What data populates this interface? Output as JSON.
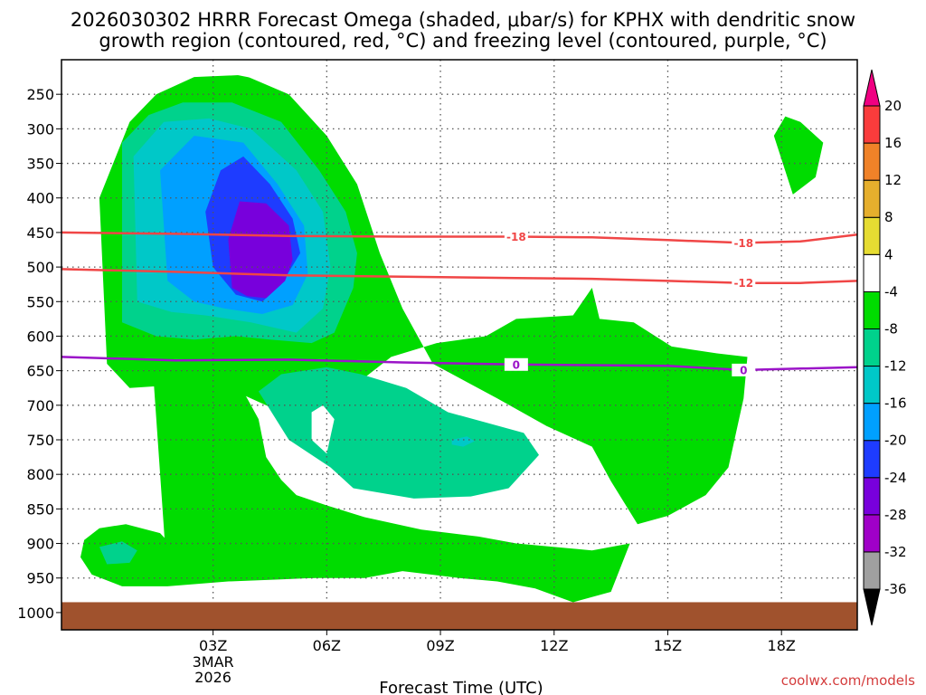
{
  "chart_data": {
    "type": "contour",
    "title_line1": "2026030302 HRRR Forecast Omega (shaded, μbar/s) for KPHX with dendritic snow",
    "title_line2": "growth region (contoured, red, °C) and freezing level (contoured, purple, °C)",
    "xlabel": "Forecast Time (UTC)",
    "credit": "coolwx.com/models",
    "x_range_hours": [
      -1,
      20
    ],
    "x_ticks": [
      {
        "hour": 3,
        "label": "03Z",
        "sub": [
          "3MAR",
          "2026"
        ]
      },
      {
        "hour": 6,
        "label": "06Z",
        "sub": []
      },
      {
        "hour": 9,
        "label": "09Z",
        "sub": []
      },
      {
        "hour": 12,
        "label": "12Z",
        "sub": []
      },
      {
        "hour": 15,
        "label": "15Z",
        "sub": []
      },
      {
        "hour": 18,
        "label": "18Z",
        "sub": []
      }
    ],
    "y_range_mb": [
      200,
      1025
    ],
    "y_ticks": [
      250,
      300,
      350,
      400,
      450,
      500,
      550,
      600,
      650,
      700,
      750,
      800,
      850,
      900,
      950,
      1000
    ],
    "surface_pressure_mb": 985,
    "colorbar": {
      "levels": [
        -36,
        -32,
        -28,
        -24,
        -20,
        -16,
        -12,
        -8,
        -4,
        4,
        8,
        12,
        16,
        20
      ],
      "colors": [
        "#000000",
        "#a0a0a0",
        "#a000c8",
        "#7800dc",
        "#1e3cff",
        "#00a0ff",
        "#00c8c8",
        "#00d28c",
        "#00dc00",
        "#ffffff",
        "#e6dc32",
        "#e6af2d",
        "#f08228",
        "#fa3c3c",
        "#f00082"
      ]
    },
    "dgz_contours": [
      {
        "value": -18,
        "label": "-18",
        "points": [
          [
            -1,
            450
          ],
          [
            2,
            452
          ],
          [
            5,
            455
          ],
          [
            8,
            456
          ],
          [
            11,
            456
          ],
          [
            13,
            457
          ],
          [
            15,
            461
          ],
          [
            17,
            465
          ],
          [
            18.5,
            463
          ],
          [
            20,
            453
          ]
        ],
        "label_hours": [
          11,
          17
        ]
      },
      {
        "value": -12,
        "label": "-12",
        "points": [
          [
            -1,
            503
          ],
          [
            2,
            507
          ],
          [
            5,
            512
          ],
          [
            8,
            514
          ],
          [
            11,
            516
          ],
          [
            13,
            517
          ],
          [
            15,
            520
          ],
          [
            17,
            523
          ],
          [
            18.5,
            523
          ],
          [
            20,
            520
          ]
        ],
        "label_hours": [
          17
        ]
      }
    ],
    "freezing_contours": [
      {
        "value": 0,
        "label": "0",
        "points": [
          [
            -1,
            630
          ],
          [
            2,
            635
          ],
          [
            5,
            634
          ],
          [
            8,
            638
          ],
          [
            11,
            641
          ],
          [
            13,
            642
          ],
          [
            15,
            643
          ],
          [
            17,
            649
          ],
          [
            18.5,
            647
          ],
          [
            20,
            645
          ]
        ],
        "label_hours": [
          11,
          17
        ]
      }
    ],
    "omega_regions": [
      {
        "value": -4,
        "points": [
          [
            0.2,
            640
          ],
          [
            0,
            400
          ],
          [
            0.8,
            290
          ],
          [
            1.5,
            250
          ],
          [
            2.5,
            225
          ],
          [
            3.8,
            222
          ],
          [
            5,
            250
          ],
          [
            6,
            310
          ],
          [
            6.8,
            380
          ],
          [
            7.4,
            480
          ],
          [
            8,
            560
          ],
          [
            8.8,
            640
          ],
          [
            10.5,
            690
          ],
          [
            11.8,
            730
          ],
          [
            13,
            760
          ],
          [
            13.5,
            810
          ],
          [
            14.2,
            872
          ],
          [
            15,
            860
          ],
          [
            16,
            830
          ],
          [
            16.6,
            790
          ],
          [
            17,
            690
          ],
          [
            17.1,
            630
          ],
          [
            16.3,
            625
          ],
          [
            15.1,
            615
          ],
          [
            14.1,
            580
          ],
          [
            13.2,
            575
          ],
          [
            13,
            530
          ],
          [
            12.5,
            570
          ],
          [
            11,
            575
          ],
          [
            10.2,
            600
          ],
          [
            8.9,
            610
          ],
          [
            7.7,
            630
          ],
          [
            7,
            660
          ],
          [
            6.6,
            680
          ],
          [
            5.7,
            700
          ],
          [
            5,
            715
          ],
          [
            4,
            690
          ],
          [
            3,
            665
          ],
          [
            2.2,
            670
          ],
          [
            0.8,
            675
          ]
        ]
      },
      {
        "value": -4,
        "points": [
          [
            1.4,
            640
          ],
          [
            2,
            640
          ],
          [
            3.2,
            660
          ],
          [
            3.8,
            680
          ],
          [
            4.2,
            720
          ],
          [
            4.4,
            775
          ],
          [
            4.8,
            808
          ],
          [
            5.2,
            830
          ],
          [
            6,
            845
          ],
          [
            7,
            862
          ],
          [
            8.5,
            880
          ],
          [
            10,
            890
          ],
          [
            11,
            900
          ],
          [
            12,
            905
          ],
          [
            13,
            910
          ],
          [
            14,
            900
          ],
          [
            13.5,
            970
          ],
          [
            12.5,
            985
          ],
          [
            11.5,
            965
          ],
          [
            10.5,
            955
          ],
          [
            9.5,
            950
          ],
          [
            8,
            940
          ],
          [
            7,
            950
          ],
          [
            5.5,
            950
          ],
          [
            4.5,
            940
          ],
          [
            3,
            950
          ],
          [
            1.8,
            955
          ]
        ]
      },
      {
        "value": -4,
        "points": [
          [
            18.3,
            395
          ],
          [
            17.8,
            310
          ],
          [
            18.1,
            282
          ],
          [
            18.5,
            290
          ],
          [
            19.1,
            320
          ],
          [
            18.9,
            370
          ]
        ]
      },
      {
        "value": -4,
        "points": [
          [
            -0.4,
            895
          ],
          [
            0,
            878
          ],
          [
            0.7,
            872
          ],
          [
            1.6,
            885
          ],
          [
            2.2,
            920
          ],
          [
            2.8,
            890
          ],
          [
            3.4,
            860
          ],
          [
            4.2,
            840
          ],
          [
            5,
            845
          ],
          [
            6,
            880
          ],
          [
            6.8,
            900
          ],
          [
            7.4,
            918
          ],
          [
            7.5,
            942
          ],
          [
            6.4,
            948
          ],
          [
            4.8,
            952
          ],
          [
            3.4,
            955
          ],
          [
            1.8,
            962
          ],
          [
            0.6,
            962
          ],
          [
            -0.2,
            945
          ],
          [
            -0.5,
            920
          ]
        ]
      },
      {
        "value": -8,
        "points": [
          [
            0.6,
            580
          ],
          [
            0.6,
            320
          ],
          [
            1.3,
            280
          ],
          [
            2.2,
            262
          ],
          [
            3.5,
            262
          ],
          [
            4.8,
            290
          ],
          [
            5.8,
            360
          ],
          [
            6.5,
            420
          ],
          [
            6.8,
            480
          ],
          [
            6.7,
            530
          ],
          [
            6.2,
            595
          ],
          [
            5.6,
            610
          ],
          [
            4.5,
            605
          ],
          [
            3.6,
            600
          ],
          [
            2.5,
            605
          ],
          [
            1.5,
            600
          ]
        ]
      },
      {
        "value": -8,
        "points": [
          [
            4.2,
            680
          ],
          [
            4.8,
            655
          ],
          [
            6,
            645
          ],
          [
            6.9,
            655
          ],
          [
            8.1,
            675
          ],
          [
            9.2,
            710
          ],
          [
            10.2,
            725
          ],
          [
            11.2,
            740
          ],
          [
            11.6,
            772
          ],
          [
            10.8,
            820
          ],
          [
            9.8,
            832
          ],
          [
            8.3,
            835
          ],
          [
            6.7,
            820
          ],
          [
            6.1,
            790
          ],
          [
            5,
            750
          ]
        ]
      },
      {
        "value": -8,
        "points": [
          [
            0,
            905
          ],
          [
            0.6,
            897
          ],
          [
            1,
            910
          ],
          [
            0.8,
            928
          ],
          [
            0.2,
            930
          ]
        ]
      },
      {
        "value": -12,
        "points": [
          [
            1,
            550
          ],
          [
            0.9,
            340
          ],
          [
            1.7,
            290
          ],
          [
            2.9,
            285
          ],
          [
            4,
            300
          ],
          [
            5.2,
            360
          ],
          [
            5.9,
            420
          ],
          [
            6.1,
            500
          ],
          [
            5.9,
            560
          ],
          [
            5.2,
            595
          ],
          [
            4,
            580
          ],
          [
            2.8,
            570
          ],
          [
            1.9,
            565
          ]
        ]
      },
      {
        "value": -12,
        "points": [
          [
            9.3,
            750
          ],
          [
            9.7,
            745
          ],
          [
            9.9,
            752
          ],
          [
            9.6,
            760
          ],
          [
            9.3,
            757
          ]
        ]
      },
      {
        "value": -16,
        "points": [
          [
            1.8,
            520
          ],
          [
            1.6,
            360
          ],
          [
            2.5,
            310
          ],
          [
            3.8,
            320
          ],
          [
            4.7,
            380
          ],
          [
            5.4,
            440
          ],
          [
            5.5,
            510
          ],
          [
            5.1,
            555
          ],
          [
            4.3,
            568
          ],
          [
            3.3,
            560
          ],
          [
            2.5,
            550
          ]
        ]
      },
      {
        "value": -20,
        "points": [
          [
            3,
            500
          ],
          [
            2.8,
            420
          ],
          [
            3.2,
            360
          ],
          [
            3.8,
            340
          ],
          [
            4.5,
            380
          ],
          [
            5.1,
            430
          ],
          [
            5.3,
            480
          ],
          [
            4.8,
            525
          ],
          [
            4.3,
            550
          ],
          [
            3.6,
            540
          ]
        ]
      },
      {
        "value": -24,
        "points": [
          [
            3.5,
            530
          ],
          [
            3.4,
            460
          ],
          [
            3.7,
            405
          ],
          [
            4.4,
            408
          ],
          [
            5,
            440
          ],
          [
            5.1,
            490
          ],
          [
            4.9,
            520
          ],
          [
            4.4,
            545
          ],
          [
            3.9,
            542
          ]
        ]
      },
      {
        "value": 4,
        "points": [
          [
            2.5,
            175
          ],
          [
            3.2,
            165
          ],
          [
            4.2,
            160
          ],
          [
            5,
            163
          ],
          [
            5.6,
            170
          ],
          [
            5.5,
            200
          ],
          [
            5,
            235
          ],
          [
            4,
            226
          ],
          [
            3,
            215
          ]
        ]
      },
      {
        "value": 4,
        "points": [
          [
            8.4,
            250
          ],
          [
            9.8,
            245
          ],
          [
            10.2,
            262
          ],
          [
            10.8,
            290
          ],
          [
            11.4,
            280
          ],
          [
            12.4,
            262
          ],
          [
            12.6,
            280
          ],
          [
            11.8,
            315
          ],
          [
            10.7,
            345
          ],
          [
            10.1,
            380
          ],
          [
            10.5,
            440
          ],
          [
            10.7,
            480
          ],
          [
            10.5,
            500
          ],
          [
            10,
            520
          ],
          [
            9.4,
            535
          ],
          [
            8.8,
            550
          ],
          [
            8.7,
            520
          ],
          [
            8.9,
            470
          ],
          [
            8.6,
            420
          ],
          [
            8.1,
            380
          ],
          [
            7.7,
            340
          ],
          [
            7.6,
            300
          ],
          [
            7.9,
            270
          ]
        ]
      },
      {
        "value": 4,
        "points": [
          [
            11.7,
            388
          ],
          [
            11.5,
            440
          ],
          [
            11.1,
            480
          ],
          [
            11.6,
            505
          ],
          [
            12.3,
            515
          ],
          [
            12.3,
            465
          ],
          [
            11.9,
            410
          ]
        ]
      },
      {
        "value": 4,
        "points": [
          [
            14.6,
            282
          ],
          [
            15.2,
            280
          ],
          [
            15.4,
            300
          ],
          [
            15.1,
            330
          ],
          [
            14.8,
            320
          ],
          [
            14.6,
            300
          ]
        ]
      },
      {
        "value": 4,
        "points": [
          [
            0.5,
            752
          ],
          [
            0.8,
            745
          ],
          [
            1,
            768
          ],
          [
            0.7,
            790
          ],
          [
            0.3,
            772
          ]
        ]
      },
      {
        "value": 4,
        "points": [
          [
            5.6,
            710
          ],
          [
            5.9,
            700
          ],
          [
            6.2,
            720
          ],
          [
            6,
            770
          ],
          [
            5.6,
            750
          ]
        ]
      },
      {
        "value": 4,
        "points": [
          [
            16.8,
            935
          ],
          [
            17.1,
            905
          ],
          [
            17.4,
            920
          ],
          [
            17.2,
            948
          ],
          [
            16.9,
            950
          ]
        ]
      }
    ]
  }
}
